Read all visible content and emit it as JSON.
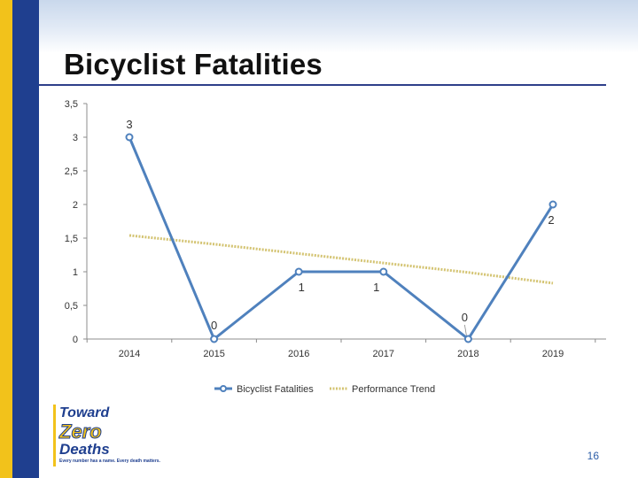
{
  "slide": {
    "title": "Bicyclist Fatalities",
    "page_number": "16"
  },
  "logo": {
    "line1": "Toward",
    "line2": "Zero",
    "line3": "Deaths",
    "tagline": "Every number has a name. Every death matters."
  },
  "colors": {
    "series_line": "#4f81bd",
    "series_marker_fill": "#ffffff",
    "trend_line": "#d4c473",
    "axis": "#8c8c8c",
    "text": "#333333"
  },
  "chart_data": {
    "type": "line",
    "categories": [
      "2014",
      "2015",
      "2016",
      "2017",
      "2018",
      "2019"
    ],
    "series": [
      {
        "name": "Bicyclist Fatalities",
        "values": [
          3,
          0,
          1,
          1,
          0,
          2
        ],
        "data_labels": [
          "3",
          "0",
          "1",
          "1",
          "0",
          "2"
        ],
        "style": "solid-with-markers"
      },
      {
        "name": "Performance Trend",
        "values": [
          1.54,
          1.41,
          1.27,
          1.13,
          0.99,
          0.83
        ],
        "style": "dotted"
      }
    ],
    "y_ticks": [
      0,
      0.5,
      1,
      1.5,
      2,
      2.5,
      3,
      3.5
    ],
    "y_tick_labels": [
      "0",
      "0,5",
      "1",
      "1,5",
      "2",
      "2,5",
      "3",
      "3,5"
    ],
    "ylim": [
      0,
      3.5
    ],
    "legend_position": "bottom",
    "grid": false
  }
}
